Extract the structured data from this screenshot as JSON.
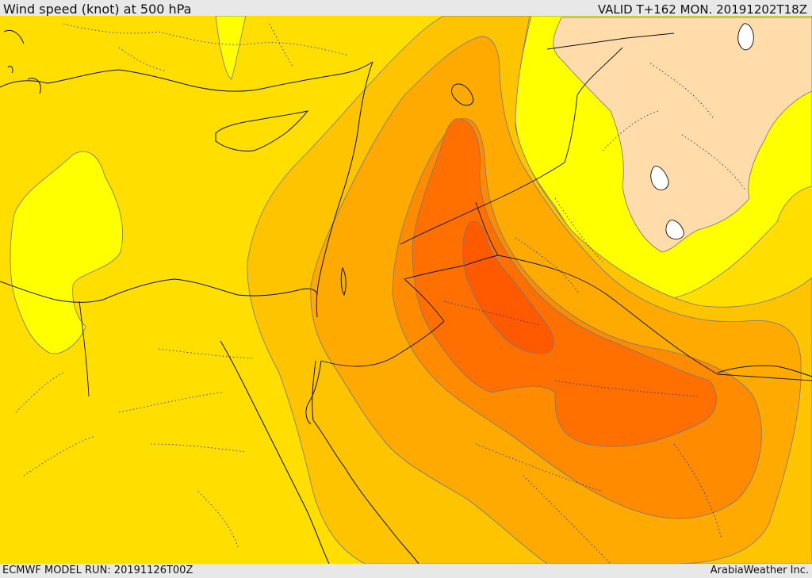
{
  "header": {
    "title": "Wind speed (knot) at 500 hPa",
    "valid": "VALID T+162 MON. 20191202T18Z"
  },
  "footer": {
    "model_run": "ECMWF MODEL RUN: 20191126T00Z",
    "brand": "ArabiaWeather Inc."
  },
  "colors": {
    "base": "#ffde00",
    "light_yellow": "#ffff00",
    "beige": "#ffdcaa",
    "orange_1": "#ffc400",
    "orange_2": "#ffaa00",
    "orange_3": "#ff8c00",
    "orange_4": "#ff7000",
    "orange_5": "#ff5a00",
    "water_white": "#ffffff"
  }
}
